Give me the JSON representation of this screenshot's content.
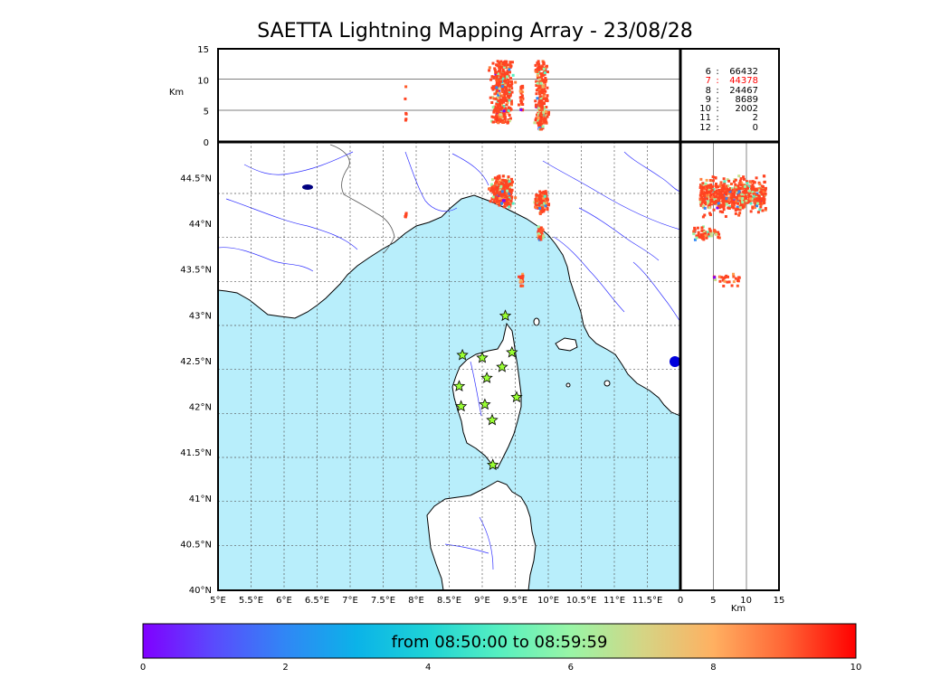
{
  "title": "SAETTA Lightning Mapping Array - 23/08/28",
  "altitude_unit": "Km",
  "altitude_ticks": [
    "0",
    "5",
    "10",
    "15"
  ],
  "lat_ticks": [
    "40°N",
    "40.5°N",
    "41°N",
    "41.5°N",
    "42°N",
    "42.5°N",
    "43°N",
    "43.5°N",
    "44°N",
    "44.5°N"
  ],
  "lon_ticks": [
    "5°E",
    "5.5°E",
    "6°E",
    "6.5°E",
    "7°E",
    "7.5°E",
    "8°E",
    "8.5°E",
    "9°E",
    "9.5°E",
    "10°E",
    "10.5°E",
    "11°E",
    "11.5°E"
  ],
  "stations_counts": [
    {
      "level": "6",
      "count": "66432",
      "color": "#000000"
    },
    {
      "level": "7",
      "count": "44378",
      "color": "#ff0000"
    },
    {
      "level": "8",
      "count": "24467",
      "color": "#000000"
    },
    {
      "level": "9",
      "count": "8689",
      "color": "#000000"
    },
    {
      "level": "10",
      "count": "2002",
      "color": "#000000"
    },
    {
      "level": "11",
      "count": "2",
      "color": "#000000"
    },
    {
      "level": "12",
      "count": "0",
      "color": "#000000"
    }
  ],
  "colorbar": {
    "label": "from 08:50:00 to 08:59:59",
    "ticks": [
      "0",
      "2",
      "4",
      "6",
      "8",
      "10"
    ],
    "range_minutes": [
      0,
      10
    ]
  },
  "colors": {
    "sea": "#b8eefb",
    "land": "#ffffff",
    "rivers": "#3333ff",
    "stations": "#99ff33",
    "lightning_main": "#ff4422"
  },
  "map_extent": {
    "lon": [
      5,
      12
    ],
    "lat": [
      40,
      44.9
    ]
  },
  "stations": [
    {
      "lon": 9.35,
      "lat": 43.0
    },
    {
      "lon": 8.7,
      "lat": 42.57
    },
    {
      "lon": 9.0,
      "lat": 42.54
    },
    {
      "lon": 9.45,
      "lat": 42.6
    },
    {
      "lon": 9.3,
      "lat": 42.44
    },
    {
      "lon": 9.07,
      "lat": 42.32
    },
    {
      "lon": 8.65,
      "lat": 42.23
    },
    {
      "lon": 9.52,
      "lat": 42.11
    },
    {
      "lon": 8.68,
      "lat": 42.01
    },
    {
      "lon": 9.04,
      "lat": 42.03
    },
    {
      "lon": 9.15,
      "lat": 41.86
    },
    {
      "lon": 9.16,
      "lat": 41.37
    }
  ],
  "lightning_clusters": [
    {
      "lon": 9.3,
      "lat": 44.35,
      "lon_spread": 0.22,
      "lat_spread": 0.22,
      "alt_min": 3,
      "alt_max": 13,
      "n": 380
    },
    {
      "lon": 9.9,
      "lat": 44.25,
      "lon_spread": 0.13,
      "lat_spread": 0.15,
      "alt_min": 3,
      "alt_max": 13,
      "n": 220
    },
    {
      "lon": 9.88,
      "lat": 43.9,
      "lon_spread": 0.06,
      "lat_spread": 0.1,
      "alt_min": 2,
      "alt_max": 6,
      "n": 60
    },
    {
      "lon": 9.6,
      "lat": 43.4,
      "lon_spread": 0.05,
      "lat_spread": 0.1,
      "alt_min": 5,
      "alt_max": 9,
      "n": 30
    },
    {
      "lon": 7.85,
      "lat": 44.1,
      "lon_spread": 0.02,
      "lat_spread": 0.03,
      "alt_min": 3,
      "alt_max": 9,
      "n": 6
    }
  ]
}
